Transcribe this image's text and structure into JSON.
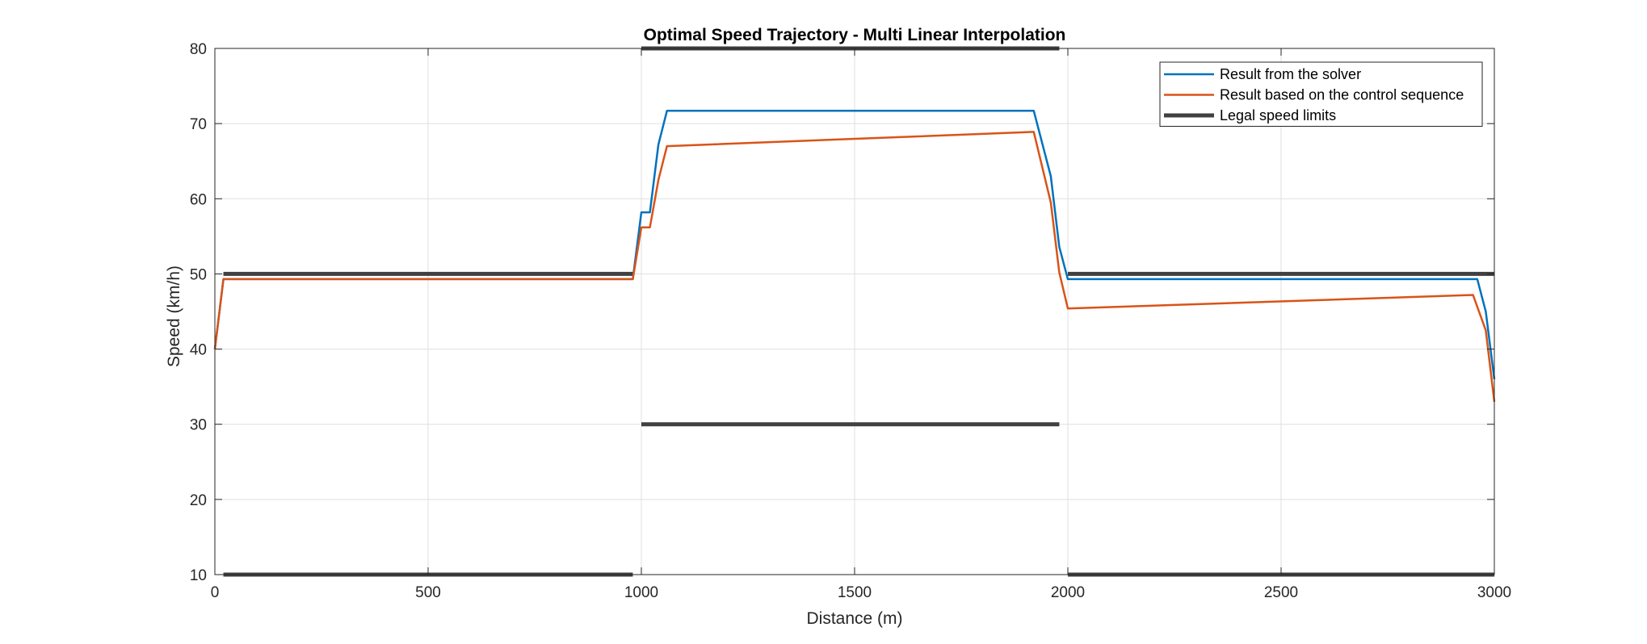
{
  "chart_data": {
    "type": "line",
    "title": "Optimal Speed Trajectory - Multi Linear Interpolation",
    "xlabel": "Distance (m)",
    "ylabel": "Speed (km/h)",
    "xlim": [
      0,
      3000
    ],
    "ylim": [
      10,
      80
    ],
    "xticks": [
      0,
      500,
      1000,
      1500,
      2000,
      2500,
      3000
    ],
    "yticks": [
      10,
      20,
      30,
      40,
      50,
      60,
      70,
      80
    ],
    "grid": true,
    "legend_position": "top-right",
    "series": [
      {
        "name": "Result from the solver",
        "color": "#0072BD",
        "points": [
          [
            0,
            40
          ],
          [
            20,
            49.3
          ],
          [
            980,
            49.3
          ],
          [
            1000,
            58.2
          ],
          [
            1020,
            58.2
          ],
          [
            1040,
            67.2
          ],
          [
            1060,
            71.7
          ],
          [
            1920,
            71.7
          ],
          [
            1960,
            63
          ],
          [
            1980,
            53.6
          ],
          [
            2000,
            49.3
          ],
          [
            2960,
            49.3
          ],
          [
            2980,
            45
          ],
          [
            3000,
            36
          ]
        ]
      },
      {
        "name": "Result based on the control sequence",
        "color": "#D95319",
        "points": [
          [
            0,
            40
          ],
          [
            20,
            49.3
          ],
          [
            980,
            49.3
          ],
          [
            1000,
            56.2
          ],
          [
            1020,
            56.2
          ],
          [
            1040,
            62.5
          ],
          [
            1060,
            67
          ],
          [
            1920,
            68.9
          ],
          [
            1960,
            59.5
          ],
          [
            1980,
            50.2
          ],
          [
            2000,
            45.4
          ],
          [
            2950,
            47.2
          ],
          [
            2980,
            42.5
          ],
          [
            3000,
            33
          ]
        ]
      }
    ],
    "limits": {
      "name": "Legal speed limits",
      "color": "#404040",
      "segments": [
        [
          [
            20,
            50
          ],
          [
            980,
            50
          ]
        ],
        [
          [
            20,
            10
          ],
          [
            980,
            10
          ]
        ],
        [
          [
            1000,
            80
          ],
          [
            1980,
            80
          ]
        ],
        [
          [
            1000,
            30
          ],
          [
            1980,
            30
          ]
        ],
        [
          [
            2000,
            50
          ],
          [
            3000,
            50
          ]
        ],
        [
          [
            2000,
            10
          ],
          [
            3000,
            10
          ]
        ]
      ]
    }
  }
}
